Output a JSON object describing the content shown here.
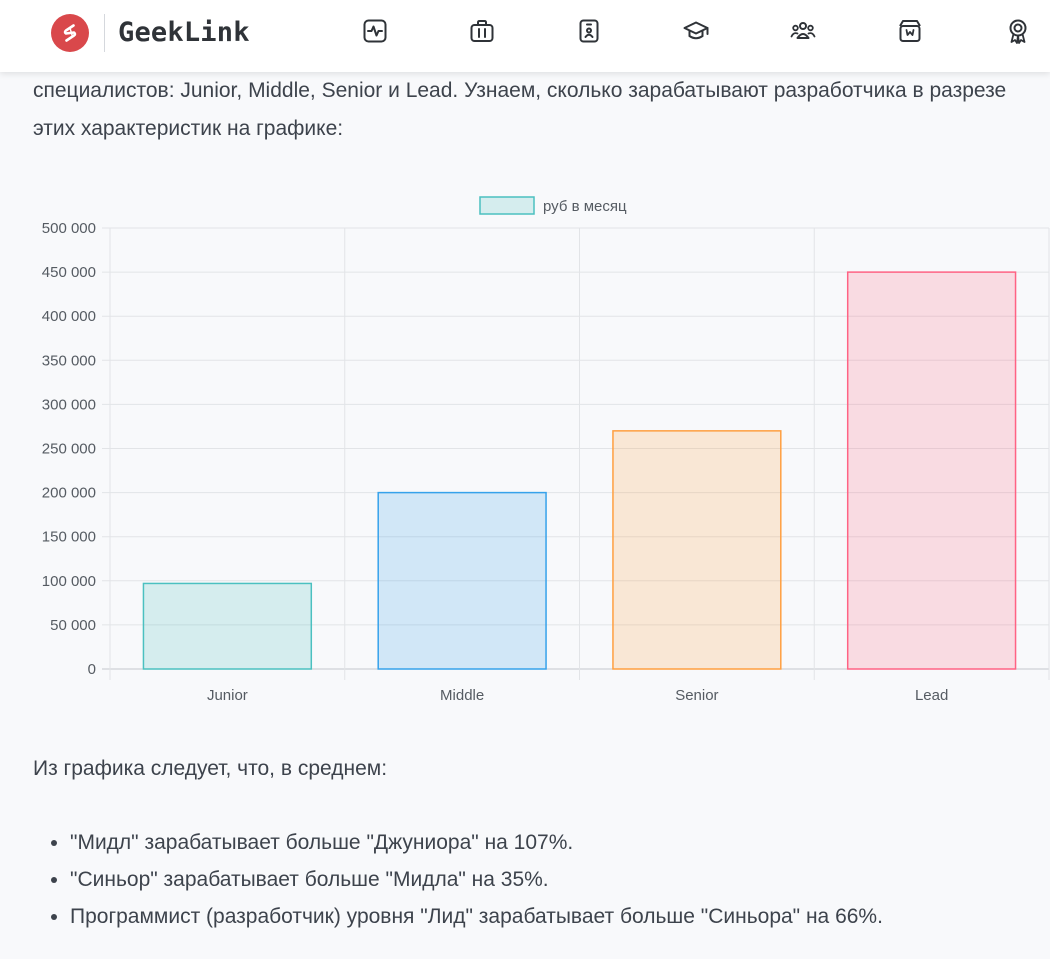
{
  "header": {
    "brand": "GeekLink",
    "nav": [
      {
        "icon": "activity-icon"
      },
      {
        "icon": "briefcase-icon"
      },
      {
        "icon": "id-badge-icon"
      },
      {
        "icon": "graduation-cap-icon"
      },
      {
        "icon": "users-icon"
      },
      {
        "icon": "store-icon"
      },
      {
        "icon": "award-icon"
      }
    ],
    "colors": {
      "logo": "#d9484b"
    }
  },
  "article": {
    "intro": "специалистов: Junior, Middle, Senior и Lead. Узнаем, сколько зарабатывают разработчика в разрезе этих характеристик на графике:",
    "conclusion": "Из графика следует, что, в среднем:",
    "bullets": [
      "\"Мидл\" зарабатывает больше \"Джуниора\" на 107%.",
      "\"Синьор\" зарабатывает больше \"Мидла\" на 35%.",
      "Программист (разработчик) уровня \"Лид\" зарабатывает больше \"Синьора\" на 66%."
    ]
  },
  "chart_data": {
    "type": "bar",
    "categories": [
      "Junior",
      "Middle",
      "Senior",
      "Lead"
    ],
    "series": [
      {
        "name": "руб в месяц",
        "values": [
          97000,
          200000,
          270000,
          450000
        ]
      }
    ],
    "ylim": [
      0,
      500000
    ],
    "yticks": [
      0,
      50000,
      100000,
      150000,
      200000,
      250000,
      300000,
      350000,
      400000,
      450000,
      500000
    ],
    "ytick_labels": [
      "0",
      "50 000",
      "100 000",
      "150 000",
      "200 000",
      "250 000",
      "300 000",
      "350 000",
      "400 000",
      "450 000",
      "500 000"
    ],
    "grid": true,
    "legend": "top-center",
    "bar_fills": [
      "rgba(75,192,192,0.2)",
      "rgba(54,162,235,0.2)",
      "rgba(255,159,64,0.2)",
      "rgba(255,99,132,0.2)"
    ],
    "bar_strokes": [
      "#4bc0c0",
      "#36a2eb",
      "#ff9f40",
      "#ff6384"
    ]
  }
}
